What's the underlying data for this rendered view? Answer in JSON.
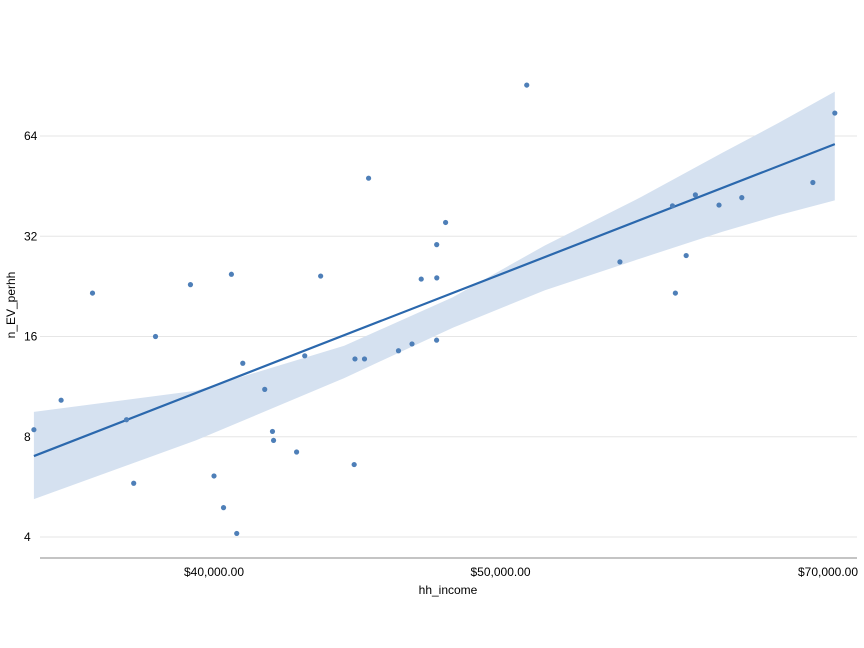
{
  "chart_data": {
    "type": "scatter",
    "title": "",
    "xlabel": "hh_income",
    "ylabel": "n_EV_perhh",
    "y_scale": "log2",
    "x_scale": "reciprocal",
    "grid": "horizontal",
    "x_ticks": [
      {
        "value": 40000,
        "label": "$40,000.00"
      },
      {
        "value": 50000,
        "label": "$50,000.00"
      },
      {
        "value": 70000,
        "label": "$70,000.00"
      }
    ],
    "y_ticks": [
      {
        "value": 4,
        "label": "4"
      },
      {
        "value": 8,
        "label": "8"
      },
      {
        "value": 16,
        "label": "16"
      },
      {
        "value": 32,
        "label": "32"
      },
      {
        "value": 64,
        "label": "64"
      }
    ],
    "xlim": [
      35300,
      70300
    ],
    "ylim": [
      3.7,
      100
    ],
    "points": [
      {
        "x": 35533,
        "y": 8.4
      },
      {
        "x": 36143,
        "y": 10.3
      },
      {
        "x": 36873,
        "y": 21.6
      },
      {
        "x": 37697,
        "y": 9.0
      },
      {
        "x": 37877,
        "y": 5.8
      },
      {
        "x": 38431,
        "y": 16.0
      },
      {
        "x": 39353,
        "y": 22.9
      },
      {
        "x": 40000,
        "y": 6.1
      },
      {
        "x": 40492,
        "y": 24.6
      },
      {
        "x": 40268,
        "y": 4.9
      },
      {
        "x": 40820,
        "y": 13.3
      },
      {
        "x": 40645,
        "y": 4.1
      },
      {
        "x": 41468,
        "y": 11.1
      },
      {
        "x": 41702,
        "y": 8.3
      },
      {
        "x": 41735,
        "y": 7.8
      },
      {
        "x": 42447,
        "y": 7.2
      },
      {
        "x": 42705,
        "y": 14.0
      },
      {
        "x": 43217,
        "y": 24.3
      },
      {
        "x": 44365,
        "y": 13.7
      },
      {
        "x": 44695,
        "y": 13.7
      },
      {
        "x": 44838,
        "y": 47.8
      },
      {
        "x": 45912,
        "y": 14.5
      },
      {
        "x": 46415,
        "y": 15.2
      },
      {
        "x": 46764,
        "y": 23.8
      },
      {
        "x": 47358,
        "y": 15.6
      },
      {
        "x": 47365,
        "y": 24.0
      },
      {
        "x": 47362,
        "y": 30.2
      },
      {
        "x": 47713,
        "y": 35.2
      },
      {
        "x": 44338,
        "y": 6.6
      },
      {
        "x": 51170,
        "y": 91.0
      },
      {
        "x": 55814,
        "y": 26.8
      },
      {
        "x": 58824,
        "y": 39.5
      },
      {
        "x": 59001,
        "y": 21.6
      },
      {
        "x": 59664,
        "y": 28.0
      },
      {
        "x": 60241,
        "y": 42.6
      },
      {
        "x": 61776,
        "y": 39.7
      },
      {
        "x": 63331,
        "y": 41.8
      },
      {
        "x": 68729,
        "y": 46.4
      },
      {
        "x": 70588,
        "y": 75.0
      }
    ],
    "regression": {
      "x": [
        35533,
        70588
      ],
      "y": [
        7.0,
        60.5
      ]
    },
    "confidence_band": {
      "x": [
        35533,
        39500,
        44000,
        48000,
        52000,
        57000,
        62000,
        66000,
        70588
      ],
      "lower": [
        5.2,
        7.8,
        12.0,
        17.0,
        22.0,
        27.5,
        33.0,
        37.0,
        41.0
      ],
      "upper": [
        9.5,
        11.0,
        15.0,
        21.0,
        30.0,
        42.0,
        57.0,
        70.0,
        87.0
      ]
    },
    "colors": {
      "points": "#4e7fb8",
      "line": "#2b68ad",
      "band": "#d5e1f0",
      "grid": "#e6e6e6",
      "axis": "#888888"
    }
  }
}
